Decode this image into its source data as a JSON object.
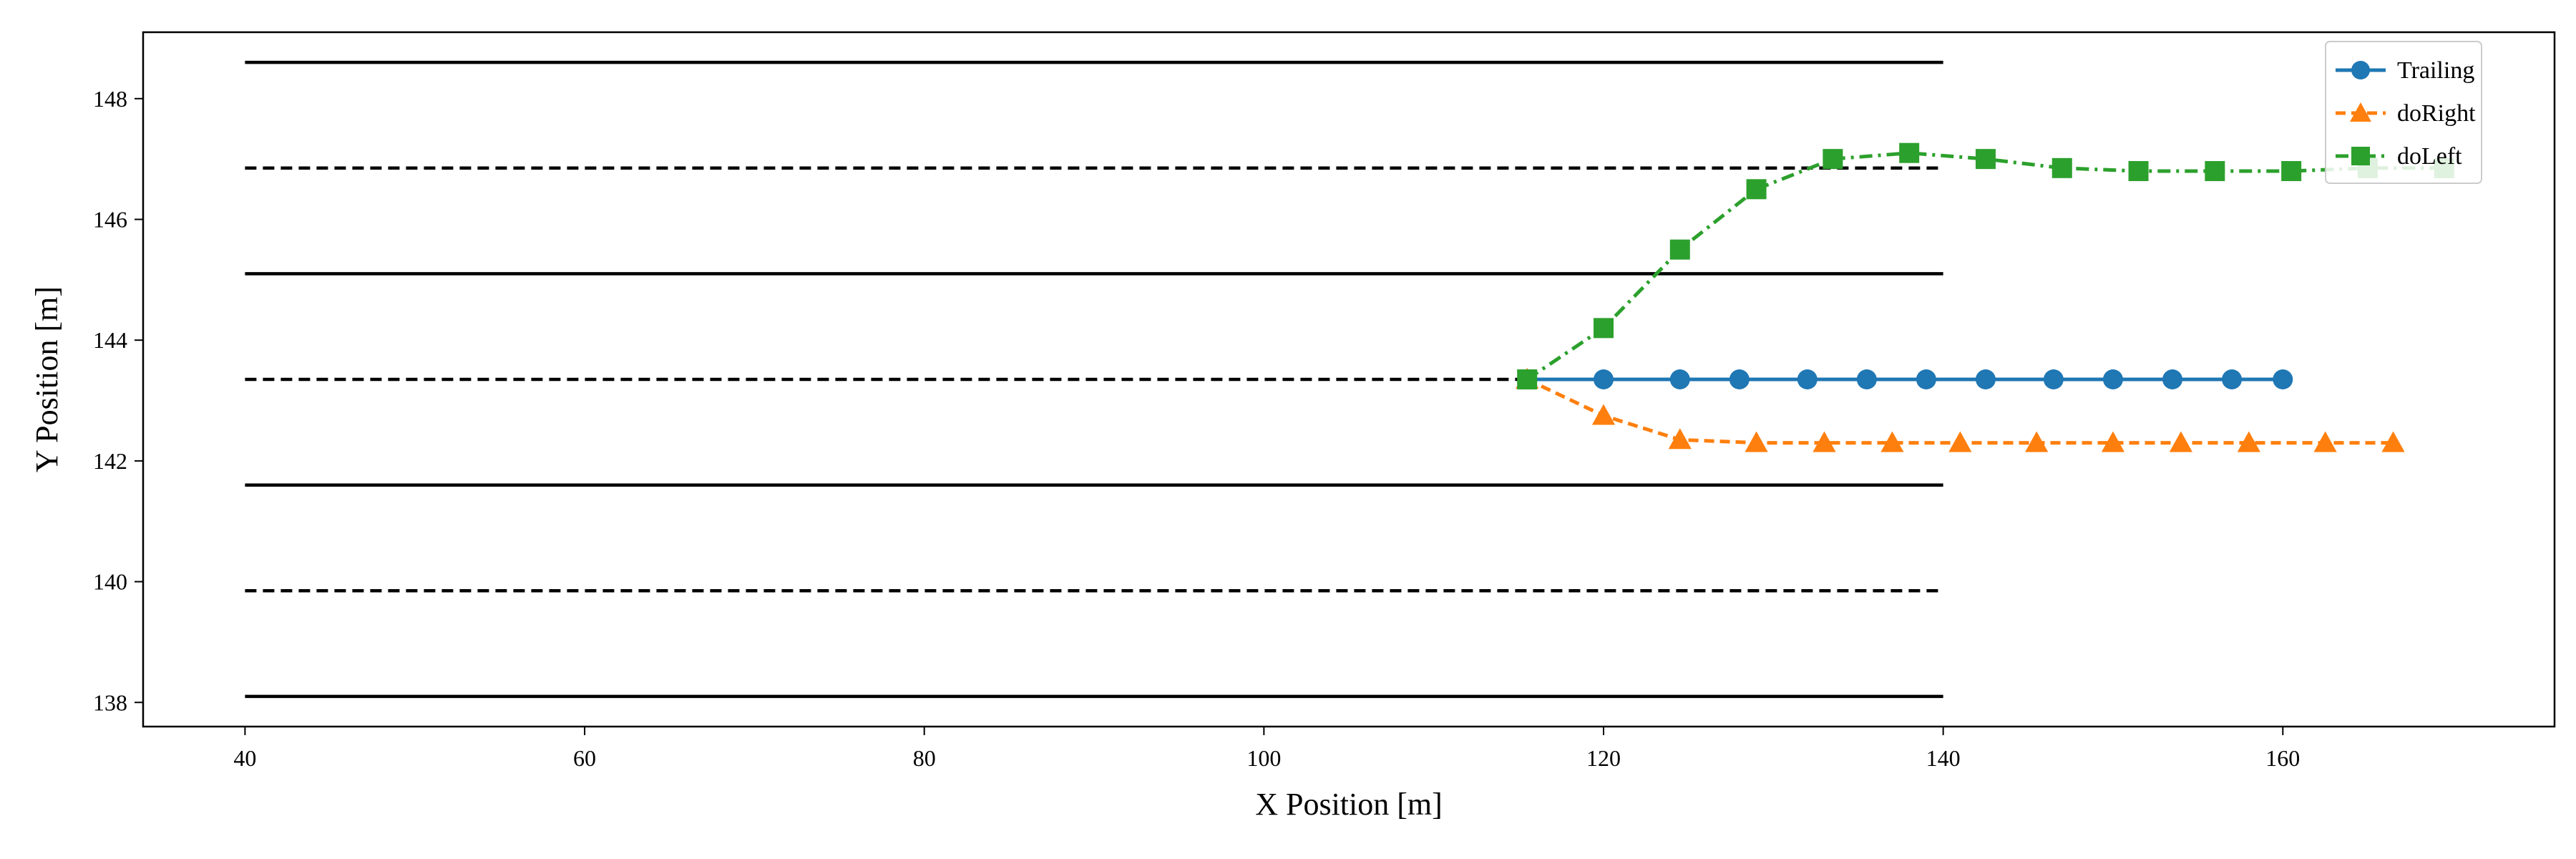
{
  "chart_data": {
    "type": "line",
    "title": "",
    "xlabel": "X Position [m]",
    "ylabel": "Y Position [m]",
    "xlim": [
      34,
      176
    ],
    "ylim": [
      137.6,
      149.1
    ],
    "xticks": [
      40,
      60,
      80,
      100,
      120,
      140,
      160
    ],
    "yticks": [
      138,
      140,
      142,
      144,
      146,
      148
    ],
    "grid": false,
    "legend_position": "top-right",
    "lane_lines": [
      {
        "y": 148.6,
        "style": "solid",
        "x": [
          40,
          140
        ]
      },
      {
        "y": 146.85,
        "style": "dashed",
        "x": [
          40,
          140
        ]
      },
      {
        "y": 145.1,
        "style": "solid",
        "x": [
          40,
          140
        ]
      },
      {
        "y": 143.35,
        "style": "dashed",
        "x": [
          40,
          140
        ]
      },
      {
        "y": 141.6,
        "style": "solid",
        "x": [
          40,
          140
        ]
      },
      {
        "y": 139.85,
        "style": "dashed",
        "x": [
          40,
          140
        ]
      },
      {
        "y": 138.1,
        "style": "solid",
        "x": [
          40,
          140
        ]
      }
    ],
    "series": [
      {
        "name": "Trailing",
        "color": "#1f77b4",
        "marker": "circle",
        "line_style": "solid",
        "x": [
          115.5,
          120,
          124.5,
          128,
          132,
          135.5,
          139,
          142.5,
          146.5,
          150,
          153.5,
          157,
          160
        ],
        "y": [
          143.35,
          143.35,
          143.35,
          143.35,
          143.35,
          143.35,
          143.35,
          143.35,
          143.35,
          143.35,
          143.35,
          143.35,
          143.35
        ]
      },
      {
        "name": "doRight",
        "color": "#ff7f0e",
        "marker": "triangle",
        "line_style": "dashed",
        "x": [
          115.5,
          120,
          124.5,
          129,
          133,
          137,
          141,
          145.5,
          150,
          154,
          158,
          162.5,
          166.5
        ],
        "y": [
          143.35,
          142.75,
          142.35,
          142.3,
          142.3,
          142.3,
          142.3,
          142.3,
          142.3,
          142.3,
          142.3,
          142.3,
          142.3
        ]
      },
      {
        "name": "doLeft",
        "color": "#2ca02c",
        "marker": "square",
        "line_style": "dashdot",
        "x": [
          115.5,
          120,
          124.5,
          129,
          133.5,
          138,
          142.5,
          147,
          151.5,
          156,
          160.5,
          165,
          169.5
        ],
        "y": [
          143.35,
          144.2,
          145.5,
          146.5,
          147.0,
          147.1,
          147.0,
          146.85,
          146.8,
          146.8,
          146.8,
          146.85,
          146.85
        ]
      }
    ]
  }
}
